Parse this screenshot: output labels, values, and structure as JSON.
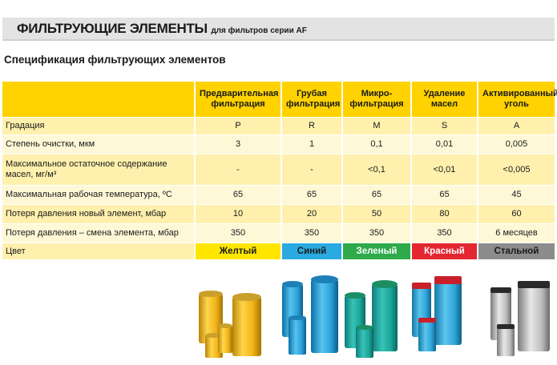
{
  "header": {
    "title": "ФИЛЬТРУЮЩИЕ ЭЛЕМЕНТЫ",
    "subtitle": "для фильтров серии AF"
  },
  "section_title": "Спецификация фильтрующих элементов",
  "table": {
    "columns": [
      "Предварительная фильтрация",
      "Грубая фильтрация",
      "Микро-фильтрация",
      "Удаление масел",
      "Активированный уголь"
    ],
    "rows": [
      {
        "label": "Градация",
        "values": [
          "P",
          "R",
          "M",
          "S",
          "A"
        ]
      },
      {
        "label": "Степень очистки, мкм",
        "values": [
          "3",
          "1",
          "0,1",
          "0,01",
          "0,005"
        ]
      },
      {
        "label": "Максимальное остаточное содержание масел, мг/м³",
        "values": [
          "-",
          "-",
          "<0,1",
          "<0,01",
          "<0,005"
        ]
      },
      {
        "label": "Максимальная рабочая температура, ºC",
        "values": [
          "65",
          "65",
          "65",
          "65",
          "45"
        ]
      },
      {
        "label": "Потеря давления новый элемент, мбар",
        "values": [
          "10",
          "20",
          "50",
          "80",
          "60"
        ]
      },
      {
        "label": "Потеря давления – смена элемента, мбар",
        "values": [
          "350",
          "350",
          "350",
          "350",
          "6 месяцев"
        ]
      }
    ],
    "color_row": {
      "label": "Цвет",
      "values": [
        "Желтый",
        "Синий",
        "Зеленый",
        "Красный",
        "Стальной"
      ]
    }
  },
  "colors": {
    "header_yellow": "#ffd200",
    "row_light": "#fff0ad",
    "row_lighter": "#fff8d6",
    "swatch_yellow": "#ffe600",
    "swatch_blue": "#29abe2",
    "swatch_green": "#2eaa4a",
    "swatch_red": "#e3262f",
    "swatch_steel": "#8c8c8c"
  },
  "images": [
    "yellow-filter-elements",
    "blue-filter-elements",
    "green-filter-elements",
    "red-filter-elements",
    "steel-filter-elements"
  ]
}
